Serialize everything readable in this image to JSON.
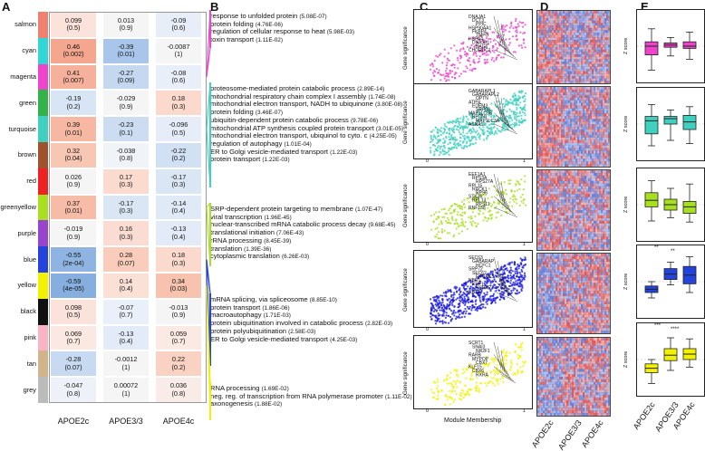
{
  "panels": {
    "a": "A",
    "b": "B",
    "c": "C",
    "d": "D",
    "e": "E"
  },
  "genotypes": [
    "APOE2c",
    "APOE3/3",
    "APOE4c"
  ],
  "modules": [
    {
      "name": "salmon",
      "color": "#f08070",
      "cells": [
        [
          "0.099",
          "(0.5)"
        ],
        [
          "0.013",
          "(0.9)"
        ],
        [
          "-0.09",
          "(0.6)"
        ]
      ],
      "bg": [
        "#fbe3dc",
        "#f5f5f5",
        "#e8eef8"
      ]
    },
    {
      "name": "cyan",
      "color": "#33d6d6",
      "cells": [
        [
          "0.46",
          "(0.002)"
        ],
        [
          "-0.39",
          "(0.01)"
        ],
        [
          "-0.0087",
          "(1)"
        ]
      ],
      "bg": [
        "#f4a68e",
        "#a9c6ea",
        "#f5f5f5"
      ]
    },
    {
      "name": "magenta",
      "color": "#ee44cc",
      "cells": [
        [
          "0.41",
          "(0.007)"
        ],
        [
          "-0.27",
          "(0.09)"
        ],
        [
          "-0.08",
          "(0.6)"
        ]
      ],
      "bg": [
        "#f5b19b",
        "#c4d8f0",
        "#e9eff8"
      ]
    },
    {
      "name": "green",
      "color": "#33b24a",
      "cells": [
        [
          "-0.19",
          "(0.2)"
        ],
        [
          "-0.029",
          "(0.9)"
        ],
        [
          "0.18",
          "(0.3)"
        ]
      ],
      "bg": [
        "#d8e5f5",
        "#f5f5f5",
        "#fbd9cd"
      ]
    },
    {
      "name": "turquoise",
      "color": "#40d0c0",
      "cells": [
        [
          "0.39",
          "(0.01)"
        ],
        [
          "-0.23",
          "(0.1)"
        ],
        [
          "-0.096",
          "(0.5)"
        ]
      ],
      "bg": [
        "#f6b8a2",
        "#ccdcf1",
        "#e6edf8"
      ]
    },
    {
      "name": "brown",
      "color": "#a0522d",
      "cells": [
        [
          "0.32",
          "(0.04)"
        ],
        [
          "-0.038",
          "(0.8)"
        ],
        [
          "-0.22",
          "(0.2)"
        ]
      ],
      "bg": [
        "#f8c7b4",
        "#f0f3f8",
        "#d1e0f3"
      ]
    },
    {
      "name": "red",
      "color": "#ee2222",
      "cells": [
        [
          "0.026",
          "(0.9)"
        ],
        [
          "0.17",
          "(0.3)"
        ],
        [
          "-0.17",
          "(0.3)"
        ]
      ],
      "bg": [
        "#f5f5f5",
        "#fbdbd0",
        "#dbe6f5"
      ]
    },
    {
      "name": "greenyellow",
      "color": "#a8e020",
      "cells": [
        [
          "0.37",
          "(0.01)"
        ],
        [
          "-0.17",
          "(0.3)"
        ],
        [
          "-0.14",
          "(0.4)"
        ]
      ],
      "bg": [
        "#f7bca8",
        "#dbe6f5",
        "#e0eaf6"
      ]
    },
    {
      "name": "purple",
      "color": "#9944cc",
      "cells": [
        [
          "-0.019",
          "(0.9)"
        ],
        [
          "0.16",
          "(0.3)"
        ],
        [
          "-0.13",
          "(0.4)"
        ]
      ],
      "bg": [
        "#f5f5f5",
        "#fbdcd2",
        "#e2ebf7"
      ]
    },
    {
      "name": "blue",
      "color": "#2244dd",
      "cells": [
        [
          "-0.55",
          "(2e-04)"
        ],
        [
          "0.28",
          "(0.07)"
        ],
        [
          "0.18",
          "(0.3)"
        ]
      ],
      "bg": [
        "#8fb4e2",
        "#f9ccbb",
        "#fbd9cd"
      ]
    },
    {
      "name": "yellow",
      "color": "#f2f200",
      "cells": [
        [
          "-0.59",
          "(4e-05)"
        ],
        [
          "0.14",
          "(0.4)"
        ],
        [
          "0.34",
          "(0.03)"
        ]
      ],
      "bg": [
        "#86aede",
        "#fbe0d6",
        "#f7c2ae"
      ]
    },
    {
      "name": "black",
      "color": "#111111",
      "cells": [
        [
          "0.098",
          "(0.5)"
        ],
        [
          "-0.07",
          "(0.7)"
        ],
        [
          "-0.013",
          "(0.9)"
        ]
      ],
      "bg": [
        "#fbe3dc",
        "#eaf0f9",
        "#f5f5f5"
      ]
    },
    {
      "name": "pink",
      "color": "#f8b4c4",
      "cells": [
        [
          "0.069",
          "(0.7)"
        ],
        [
          "-0.13",
          "(0.4)"
        ],
        [
          "0.059",
          "(0.7)"
        ]
      ],
      "bg": [
        "#fbe8e2",
        "#e2ebf7",
        "#fbe9e4"
      ]
    },
    {
      "name": "tan",
      "color": "#d2b48c",
      "cells": [
        [
          "-0.28",
          "(0.07)"
        ],
        [
          "-0.0012",
          "(1)"
        ],
        [
          "0.22",
          "(0.2)"
        ]
      ],
      "bg": [
        "#c7daf1",
        "#f5f5f5",
        "#fad2c4"
      ]
    },
    {
      "name": "grey",
      "color": "#bbbbbb",
      "cells": [
        [
          "-0.047",
          "(0.8)"
        ],
        [
          "0.00072",
          "(1)"
        ],
        [
          "0.036",
          "(0.8)"
        ]
      ],
      "bg": [
        "#eef2f8",
        "#f5f5f5",
        "#f9ece8"
      ]
    }
  ],
  "terms": [
    {
      "color": "#ee44cc",
      "items": [
        [
          "response to unfolded protein",
          "(5.08E-07)"
        ],
        [
          "protein folding",
          "(4.76E-06)"
        ],
        [
          "regulation of cellular response to heat",
          "(5.98E-03)"
        ],
        [
          "toxin transport",
          "(1.11E-02)"
        ]
      ]
    },
    {
      "color": "#40d0c0",
      "items": [
        [
          "proteosome-mediated protein catabolic process",
          "(2.89E-14)"
        ],
        [
          "mitochondrial respiratory chain complex I assembly",
          "(1.74E-08)"
        ],
        [
          "mitochondrial electron transport, NADH to ubiquinone",
          "(3.80E-08)"
        ],
        [
          "protein folding",
          "(3.46E-07)"
        ],
        [
          "ubiquitin-dependent protein catabolic process",
          "(9.78E-06)"
        ],
        [
          "mitochondrial ATP synthesis coupled protein transport",
          "(3.01E-05)"
        ],
        [
          "mitochondrial electron transport, ubiquinol to cyto. c",
          "(4.25E-05)"
        ],
        [
          "regulation of autophagy",
          "(1.01E-04)"
        ],
        [
          "ER to Golgi vesicle-mediated transport",
          "(1.22E-03)"
        ],
        [
          "protein transport",
          "(1.22E-03)"
        ]
      ]
    },
    {
      "color": "#a8e020",
      "items": [
        [
          "SRP-dependent protein targeting to membrane",
          "(1.07E-47)"
        ],
        [
          "viral transcription",
          "(1.96E-45)"
        ],
        [
          "nuclear-transcribed mRNA catabolic process decay",
          "(9.68E-45)"
        ],
        [
          "translational initiation",
          "(7.06E-43)"
        ],
        [
          "rRNA processing",
          "(8.45E-39)"
        ],
        [
          "translation",
          "(1.39E-36)"
        ],
        [
          "cytoplasmic translation",
          "(6.26E-03)"
        ]
      ]
    },
    {
      "color": "#2244dd",
      "items": [
        [
          "mRNA splicing, via spliceosome",
          "(8.85E-10)"
        ],
        [
          "protein transport",
          "(1.86E-06)"
        ],
        [
          "macroautophagy",
          "(1.71E-03)"
        ],
        [
          "protein ubiquitination involved in catabolic process",
          "(2.82E-03)"
        ],
        [
          "protein polyubiquitination",
          "(2.58E-03)"
        ],
        [
          "ER to Golgi vesicle-mediated transport",
          "(4.25E-03)"
        ]
      ]
    },
    {
      "color": "#f2f200",
      "items": [
        [
          "RNA processing",
          "(1.69E-02)"
        ],
        [
          "neg. reg. of transcription from RNA polymerase promoter",
          "(1.11E-02)"
        ],
        [
          "axonogenesis",
          "(1.88E-02)"
        ]
      ]
    }
  ],
  "scatter": {
    "ylabel": "Gene significance",
    "xlabel": "Module Membership",
    "xticks": [
      "0",
      "1"
    ],
    "plots": [
      {
        "color": "#ee44cc",
        "genes": [
          "DNAJA1",
          "DCT3",
          "PPIC",
          "HSP90AA1",
          "FKBP4",
          "TMPO",
          "HSPA4",
          "DNAJB1",
          "BAG6",
          "CHORDC1"
        ]
      },
      {
        "color": "#40d0c0",
        "genes": [
          "GABARAPL1",
          "GABARAPL2",
          "OPTN",
          "ATP5L",
          "EDEM3",
          "SRP68",
          "MAP1LC3B",
          "BECN1",
          "MAP1LC3A",
          "ASNA1"
        ]
      },
      {
        "color": "#a8e020",
        "genes": [
          "EEF1A1",
          "RPS3A",
          "RPS27A",
          "RPL15",
          "RACK1",
          "RPS6",
          "STK36",
          "RPL13",
          "RPS11",
          "RNF138"
        ]
      },
      {
        "color": "#1a1ae0",
        "genes": [
          "SEC63",
          "GABARAP",
          "HCFC1",
          "SRP72",
          "SEC62",
          "EIF2AK3",
          "NBR1",
          "XBP1",
          "HSPA5",
          "RGS5"
        ]
      },
      {
        "color": "#f2f200",
        "genes": [
          "SCRT1",
          "SNAI3",
          "NR2F1",
          "RARB",
          "MYPOP",
          "CBX7",
          "KLF15",
          "CBX6",
          "RXRA"
        ]
      }
    ]
  },
  "boxes": {
    "ylabel": "Z score",
    "sig": [
      {
        "panel": 3,
        "marks": [
          "**",
          "**"
        ]
      },
      {
        "panel": 4,
        "marks": [
          "***",
          "****"
        ]
      }
    ],
    "panels": [
      {
        "color": "#ee44cc",
        "stats": [
          [
            -2.2,
            -0.8,
            0.0,
            0.4,
            1.6
          ],
          [
            -0.9,
            -0.1,
            0.1,
            0.3,
            0.8
          ],
          [
            -1.2,
            -0.2,
            0.0,
            0.4,
            1.3
          ]
        ]
      },
      {
        "color": "#40d0c0",
        "stats": [
          [
            -2.0,
            -0.9,
            0.3,
            0.7,
            1.8
          ],
          [
            -1.5,
            0.0,
            0.5,
            0.7,
            1.3
          ],
          [
            -1.8,
            -0.5,
            0.2,
            0.8,
            1.6
          ]
        ]
      },
      {
        "color": "#a8e020",
        "stats": [
          [
            -1.5,
            -0.2,
            0.4,
            1.1,
            2.2
          ],
          [
            -1.2,
            -0.5,
            0.0,
            0.5,
            1.5
          ],
          [
            -1.6,
            -0.8,
            -0.2,
            0.3,
            1.9
          ]
        ]
      },
      {
        "color": "#2244dd",
        "stats": [
          [
            -1.5,
            -1.0,
            -0.7,
            -0.4,
            0.0
          ],
          [
            -0.3,
            0.2,
            0.7,
            1.2,
            1.8
          ],
          [
            -1.0,
            -0.2,
            0.6,
            1.4,
            2.3
          ]
        ]
      },
      {
        "color": "#f2f200",
        "stats": [
          [
            -2.2,
            -1.2,
            -0.8,
            -0.4,
            0.0
          ],
          [
            -1.0,
            -0.1,
            0.4,
            1.0,
            2.0
          ],
          [
            -0.7,
            0.0,
            0.5,
            1.0,
            1.9
          ]
        ]
      }
    ]
  }
}
